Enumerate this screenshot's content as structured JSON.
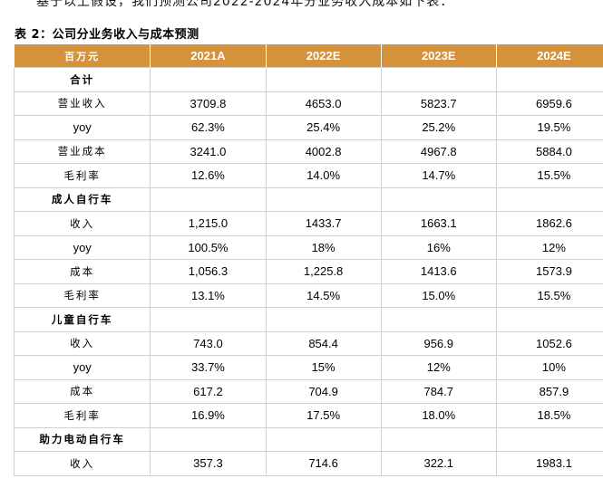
{
  "intro_text": "基于以上假设，我们预测公司2022-2024年分业务收入成本如下表：",
  "caption": "表 2：公司分业务收入与成本预测",
  "header": [
    "百万元",
    "2021A",
    "2022E",
    "2023E",
    "2024E"
  ],
  "sections": [
    {
      "title": "合计",
      "rows": [
        {
          "label": "营业收入",
          "values": [
            "3709.8",
            "4653.0",
            "5823.7",
            "6959.6"
          ]
        },
        {
          "label": "yoy",
          "values": [
            "62.3%",
            "25.4%",
            "25.2%",
            "19.5%"
          ]
        },
        {
          "label": "营业成本",
          "values": [
            "3241.0",
            "4002.8",
            "4967.8",
            "5884.0"
          ]
        },
        {
          "label": "毛利率",
          "values": [
            "12.6%",
            "14.0%",
            "14.7%",
            "15.5%"
          ]
        }
      ]
    },
    {
      "title": "成人自行车",
      "rows": [
        {
          "label": "收入",
          "values": [
            "1,215.0",
            "1433.7",
            "1663.1",
            "1862.6"
          ]
        },
        {
          "label": "yoy",
          "values": [
            "100.5%",
            "18%",
            "16%",
            "12%"
          ]
        },
        {
          "label": "成本",
          "values": [
            "1,056.3",
            "1,225.8",
            "1413.6",
            "1573.9"
          ]
        },
        {
          "label": "毛利率",
          "values": [
            "13.1%",
            "14.5%",
            "15.0%",
            "15.5%"
          ]
        }
      ]
    },
    {
      "title": "儿童自行车",
      "rows": [
        {
          "label": "收入",
          "values": [
            "743.0",
            "854.4",
            "956.9",
            "1052.6"
          ]
        },
        {
          "label": "yoy",
          "values": [
            "33.7%",
            "15%",
            "12%",
            "10%"
          ]
        },
        {
          "label": "成本",
          "values": [
            "617.2",
            "704.9",
            "784.7",
            "857.9"
          ]
        },
        {
          "label": "毛利率",
          "values": [
            "16.9%",
            "17.5%",
            "18.0%",
            "18.5%"
          ]
        }
      ]
    },
    {
      "title": "助力电动自行车",
      "rows": [
        {
          "label": "收入",
          "values": [
            "357.3",
            "714.6",
            "322.1",
            "1983.1"
          ]
        }
      ]
    }
  ]
}
